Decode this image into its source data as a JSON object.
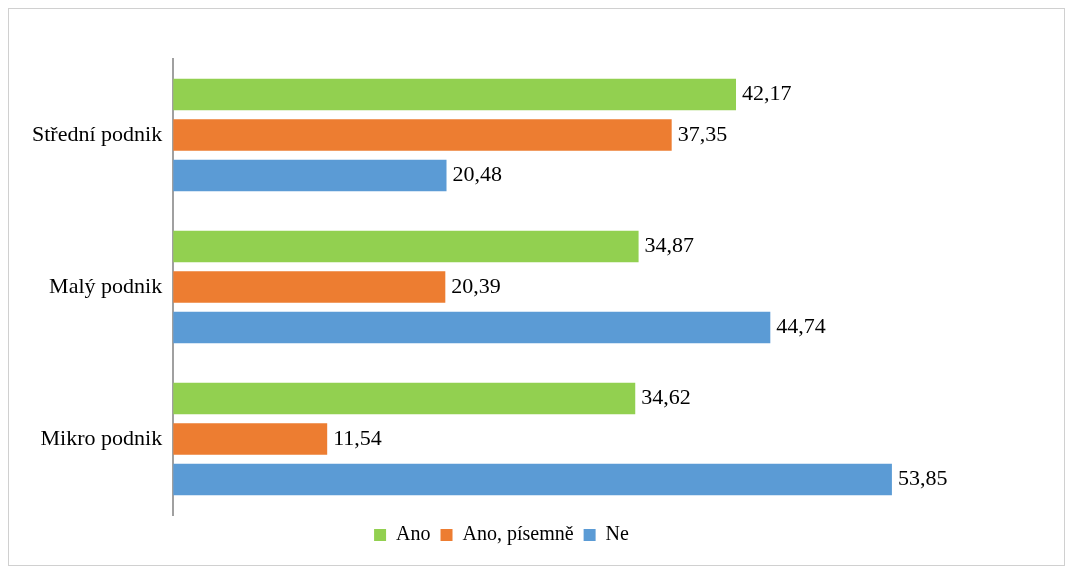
{
  "chart_data": {
    "type": "bar",
    "orientation": "horizontal",
    "categories": [
      "Střední podnik",
      "Malý podnik",
      "Mikro podnik"
    ],
    "series": [
      {
        "name": "Ano",
        "color": "#92d050",
        "values": [
          42.17,
          34.87,
          34.62
        ],
        "value_labels": [
          "42,17",
          "34,87",
          "34,62"
        ]
      },
      {
        "name": "Ano, písemně",
        "color": "#ed7d31",
        "values": [
          37.35,
          20.39,
          11.54
        ],
        "value_labels": [
          "37,35",
          "20,39",
          "11,54"
        ]
      },
      {
        "name": "Ne",
        "color": "#5b9bd5",
        "values": [
          20.48,
          44.74,
          53.85
        ],
        "value_labels": [
          "20,48",
          "44,74",
          "53,85"
        ]
      }
    ],
    "legend": "bottom"
  }
}
